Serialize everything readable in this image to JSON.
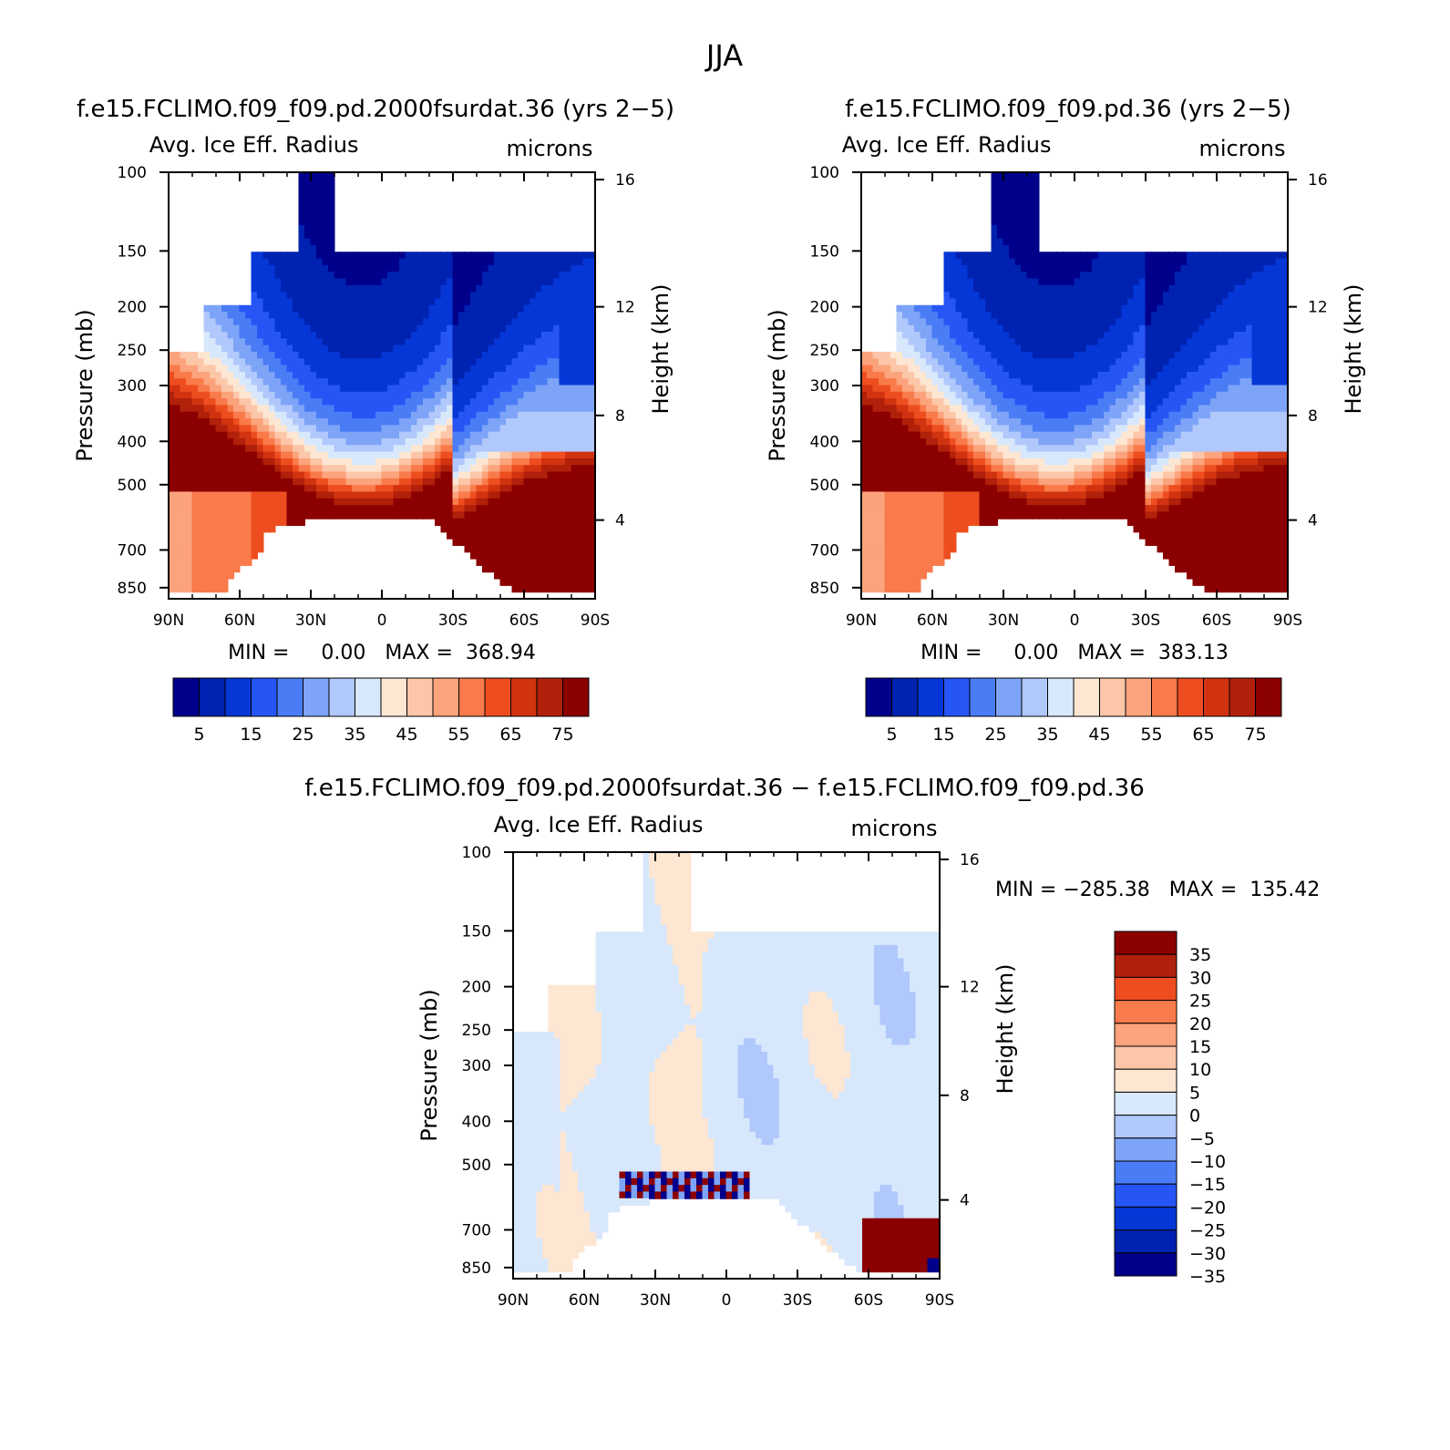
{
  "figure": {
    "main_title": "JJA",
    "panel_top_left_title": "f.e15.FCLIMO.f09_f09.pd.2000fsurdat.36 (yrs 2−5)",
    "panel_top_right_title": "f.e15.FCLIMO.f09_f09.pd.36 (yrs 2−5)",
    "panel_bottom_title": "f.e15.FCLIMO.f09_f09.pd.2000fsurdat.36 − f.e15.FCLIMO.f09_f09.pd.36"
  },
  "chart_data": [
    {
      "type": "heatmap",
      "id": "case",
      "variable": "Avg. Ice Eff. Radius",
      "units": "microns",
      "ylabel": "Pressure (mb)",
      "ylabel_right": "Height (km)",
      "x_ticks": [
        "90N",
        "60N",
        "30N",
        "0",
        "30S",
        "60S",
        "90S"
      ],
      "x_range": [
        90,
        -90
      ],
      "y_ticks": [
        100,
        150,
        200,
        250,
        300,
        400,
        500,
        700,
        850
      ],
      "y_ticks_right": [
        16,
        12,
        8,
        4
      ],
      "min_label": "MIN =     0.00   MAX =  368.94",
      "min": 0.0,
      "max": 368.94,
      "colorbar_labels": [
        "5",
        "15",
        "25",
        "35",
        "45",
        "55",
        "65",
        "75"
      ],
      "colorbar_levels": [
        5,
        10,
        15,
        20,
        25,
        30,
        35,
        40,
        45,
        50,
        55,
        60,
        65,
        70,
        75
      ]
    },
    {
      "type": "heatmap",
      "id": "control",
      "variable": "Avg. Ice Eff. Radius",
      "units": "microns",
      "ylabel": "Pressure (mb)",
      "ylabel_right": "Height (km)",
      "x_ticks": [
        "90N",
        "60N",
        "30N",
        "0",
        "30S",
        "60S",
        "90S"
      ],
      "x_range": [
        90,
        -90
      ],
      "y_ticks": [
        100,
        150,
        200,
        250,
        300,
        400,
        500,
        700,
        850
      ],
      "y_ticks_right": [
        16,
        12,
        8,
        4
      ],
      "min_label": "MIN =     0.00   MAX =  383.13",
      "min": 0.0,
      "max": 383.13,
      "colorbar_labels": [
        "5",
        "15",
        "25",
        "35",
        "45",
        "55",
        "65",
        "75"
      ],
      "colorbar_levels": [
        5,
        10,
        15,
        20,
        25,
        30,
        35,
        40,
        45,
        50,
        55,
        60,
        65,
        70,
        75
      ]
    },
    {
      "type": "heatmap",
      "id": "difference",
      "variable": "Avg. Ice Eff. Radius",
      "units": "microns",
      "ylabel": "Pressure (mb)",
      "ylabel_right": "Height (km)",
      "x_ticks": [
        "90N",
        "60N",
        "30N",
        "0",
        "30S",
        "60S",
        "90S"
      ],
      "x_range": [
        90,
        -90
      ],
      "y_ticks": [
        100,
        150,
        200,
        250,
        300,
        400,
        500,
        700,
        850
      ],
      "y_ticks_right": [
        16,
        12,
        8,
        4
      ],
      "min_label": "MIN = −285.38   MAX =  135.42",
      "min": -285.38,
      "max": 135.42,
      "colorbar_labels": [
        "35",
        "30",
        "25",
        "20",
        "15",
        "10",
        "5",
        "0",
        "−5",
        "−10",
        "−15",
        "−20",
        "−25",
        "−30",
        "−35"
      ],
      "colorbar_levels": [
        35,
        30,
        25,
        20,
        15,
        10,
        5,
        0,
        -5,
        -10,
        -15,
        -20,
        -25,
        -30,
        -35
      ]
    }
  ],
  "palettes": {
    "sequential": [
      "#00008b",
      "#0022b0",
      "#0537d6",
      "#2655f5",
      "#4a7cf5",
      "#7ea4f8",
      "#b0c8fb",
      "#d8e8fc",
      "#fde6d2",
      "#fcc6a8",
      "#fba37c",
      "#f97a4b",
      "#ee4e1f",
      "#d1320f",
      "#b0200a",
      "#8b0000"
    ],
    "diverging": [
      "#8b0000",
      "#b0200a",
      "#ee4e1f",
      "#f97a4b",
      "#fba37c",
      "#fcc6a8",
      "#fde6d2",
      "#d8e8fc",
      "#b0c8fb",
      "#7ea4f8",
      "#4a7cf5",
      "#2655f5",
      "#0537d6",
      "#0022b0",
      "#00008b"
    ]
  }
}
